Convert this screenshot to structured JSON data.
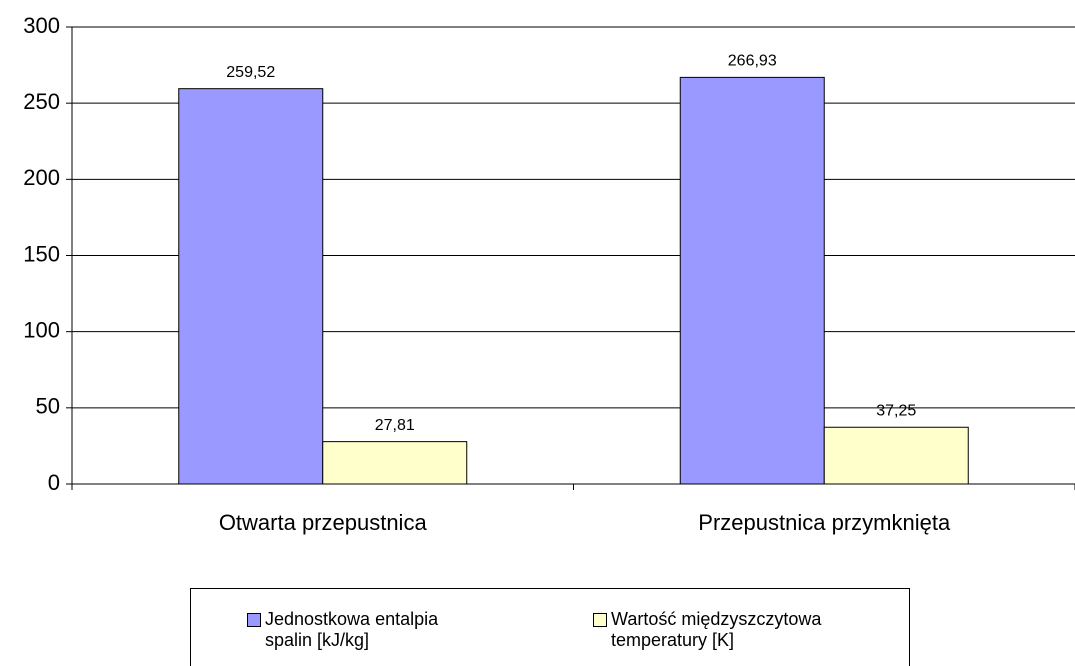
{
  "chart_data": {
    "type": "bar",
    "categories": [
      "Otwarta przepustnica",
      "Przepustnica przymknięta"
    ],
    "series": [
      {
        "name": "Jednostkowa entalpia spalin [kJ/kg]",
        "color": "#9999ff",
        "values": [
          259.52,
          266.93
        ],
        "value_labels": [
          "259,52",
          "266,93"
        ]
      },
      {
        "name": "Wartość międzyszczytowa temperatury [K]",
        "color": "#ffffcc",
        "values": [
          27.81,
          37.25
        ],
        "value_labels": [
          "27,81",
          "37,25"
        ]
      }
    ],
    "ylim": [
      0,
      300
    ],
    "yticks": [
      0,
      50,
      100,
      150,
      200,
      250,
      300
    ],
    "grid": true
  }
}
